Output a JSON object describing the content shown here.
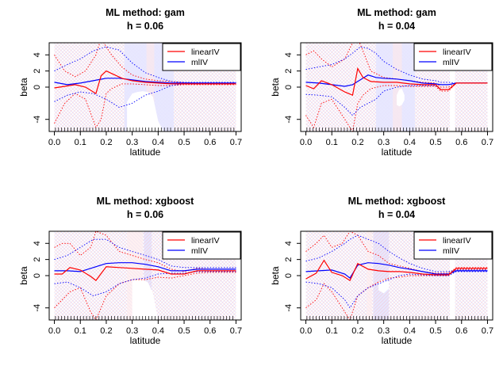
{
  "chart_data": [
    {
      "type": "line",
      "title": "ML method: gam",
      "subtitle": "h = 0.06",
      "xlabel": "latitude",
      "ylabel": "beta",
      "xlim": [
        -0.02,
        0.72
      ],
      "ylim": [
        -5.5,
        5.5
      ],
      "xticks": [
        "0.0",
        "0.1",
        "0.2",
        "0.3",
        "0.4",
        "0.5",
        "0.6",
        "0.7"
      ],
      "yticks": [
        "-4",
        "0",
        "2",
        "4"
      ],
      "legend": {
        "position": "top-right",
        "entries": [
          "linearIV",
          "mlIV"
        ]
      },
      "colors": {
        "linearIV": "#ff0000",
        "mlIV": "#0000ff",
        "band_linear": "#ffb0b0",
        "band_ml": "#b0b0ff"
      },
      "coverage": [
        [
          0.0,
          0.46
        ],
        [
          0.46,
          0.7
        ]
      ],
      "ml_gap": [
        [
          0.27,
          0.46
        ]
      ],
      "lin_gap": [
        [
          0.355,
          0.385
        ]
      ],
      "white_region": {
        "x": [
          0.28,
          0.3,
          0.32,
          0.34,
          0.36,
          0.38,
          0.4,
          0.42
        ],
        "lower": [
          -5.5,
          -5.5,
          -5.5,
          -5.5,
          -5.5,
          -5.5,
          -5.5,
          -5.5
        ],
        "upper": [
          -1.8,
          -0.8,
          -0.6,
          -0.5,
          -0.6,
          -1.2,
          -4.2,
          -5.5
        ]
      },
      "series": [
        {
          "name": "linearIV",
          "x": [
            0.0,
            0.04,
            0.08,
            0.12,
            0.16,
            0.18,
            0.2,
            0.22,
            0.26,
            0.3,
            0.35,
            0.4,
            0.45,
            0.5,
            0.55,
            0.6,
            0.7
          ],
          "y": [
            -0.1,
            0.1,
            0.3,
            0.0,
            -0.8,
            1.4,
            2.0,
            1.7,
            1.1,
            0.8,
            0.6,
            0.5,
            0.4,
            0.4,
            0.4,
            0.4,
            0.4
          ],
          "lower": [
            -4.5,
            -2.0,
            -0.8,
            -1.5,
            -5.0,
            -4.0,
            -0.8,
            -0.2,
            0.4,
            0.4,
            0.3,
            0.2,
            0.2,
            0.3,
            0.3,
            0.3,
            0.3
          ],
          "upper": [
            4.0,
            2.0,
            1.3,
            2.0,
            4.0,
            6.0,
            5.0,
            4.0,
            2.5,
            1.5,
            1.0,
            0.8,
            0.7,
            0.55,
            0.5,
            0.5,
            0.5
          ]
        },
        {
          "name": "mlIV",
          "x": [
            0.0,
            0.05,
            0.1,
            0.15,
            0.2,
            0.25,
            0.3,
            0.35,
            0.4,
            0.45,
            0.5,
            0.55,
            0.6,
            0.7
          ],
          "y": [
            0.6,
            0.3,
            0.5,
            0.8,
            1.1,
            1.1,
            0.9,
            0.7,
            0.6,
            0.5,
            0.5,
            0.5,
            0.5,
            0.5
          ],
          "lower": [
            -1.8,
            -1.0,
            -0.6,
            -0.8,
            -1.5,
            -2.5,
            -2.0,
            -1.0,
            -0.5,
            0.2,
            0.4,
            0.4,
            0.4,
            0.4
          ],
          "upper": [
            2.0,
            2.8,
            3.5,
            4.5,
            5.0,
            4.6,
            3.0,
            1.8,
            1.2,
            0.7,
            0.6,
            0.6,
            0.6,
            0.6
          ]
        }
      ]
    },
    {
      "type": "line",
      "title": "ML method: gam",
      "subtitle": "h = 0.04",
      "xlabel": "latitude",
      "ylabel": "beta",
      "xlim": [
        -0.02,
        0.72
      ],
      "ylim": [
        -5.5,
        5.5
      ],
      "xticks": [
        "0.0",
        "0.1",
        "0.2",
        "0.3",
        "0.4",
        "0.5",
        "0.6",
        "0.7"
      ],
      "yticks": [
        "-4",
        "0",
        "2",
        "4"
      ],
      "legend": {
        "position": "top-right",
        "entries": [
          "linearIV",
          "mlIV"
        ]
      },
      "colors": {
        "linearIV": "#ff0000",
        "mlIV": "#0000ff",
        "band_linear": "#ffb0b0",
        "band_ml": "#b0b0ff"
      },
      "coverage": [
        [
          0.0,
          0.555
        ],
        [
          0.575,
          0.7
        ]
      ],
      "ml_gap": [
        [
          0.27,
          0.42
        ]
      ],
      "lin_gap": [
        [
          0.335,
          0.37
        ]
      ],
      "white_region": {
        "x": [
          0.35,
          0.36,
          0.37,
          0.38
        ],
        "lower": [
          -2.2,
          -2.4,
          -2.2,
          -1.6
        ],
        "upper": [
          -1.0,
          -0.3,
          -0.2,
          -1.0
        ]
      },
      "series": [
        {
          "name": "linearIV",
          "x": [
            0.0,
            0.03,
            0.06,
            0.1,
            0.15,
            0.18,
            0.2,
            0.22,
            0.25,
            0.3,
            0.35,
            0.4,
            0.45,
            0.5,
            0.52,
            0.55,
            0.58,
            0.62,
            0.66,
            0.7
          ],
          "y": [
            0.2,
            -0.2,
            0.8,
            0.3,
            -0.6,
            -1.0,
            2.3,
            1.2,
            0.7,
            0.6,
            0.6,
            0.4,
            0.3,
            0.3,
            -0.3,
            -0.3,
            0.5,
            0.5,
            0.5,
            0.5
          ],
          "lower": [
            -3.5,
            -5.0,
            -2.0,
            -1.5,
            -4.0,
            -5.5,
            -2.0,
            -1.0,
            -0.2,
            0.2,
            0.2,
            0.1,
            0.1,
            0.1,
            -0.5,
            -0.5,
            0.5,
            0.5,
            0.5,
            0.5
          ],
          "upper": [
            4.0,
            4.5,
            3.5,
            2.5,
            3.5,
            5.5,
            6.0,
            4.5,
            2.0,
            1.2,
            1.0,
            0.8,
            0.6,
            0.5,
            0.0,
            0.0,
            0.5,
            0.5,
            0.5,
            0.5
          ]
        },
        {
          "name": "mlIV",
          "x": [
            0.0,
            0.05,
            0.1,
            0.15,
            0.18,
            0.21,
            0.24,
            0.27,
            0.3,
            0.35,
            0.4,
            0.45,
            0.5,
            0.52,
            0.55,
            0.58,
            0.62,
            0.66,
            0.7
          ],
          "y": [
            0.6,
            0.5,
            0.3,
            0.1,
            0.3,
            0.9,
            1.5,
            1.2,
            1.1,
            1.0,
            0.8,
            0.5,
            0.4,
            0.3,
            0.3,
            0.5,
            0.5,
            0.5,
            0.5
          ],
          "lower": [
            -0.9,
            -1.0,
            -1.2,
            -2.5,
            -3.5,
            -2.5,
            -2.0,
            -1.5,
            -0.5,
            0.0,
            0.2,
            0.2,
            0.2,
            -0.3,
            -0.3,
            0.5,
            0.5,
            0.5,
            0.5
          ],
          "upper": [
            2.2,
            2.5,
            2.8,
            3.5,
            4.2,
            5.0,
            4.8,
            4.2,
            3.2,
            2.2,
            1.5,
            1.0,
            0.8,
            0.6,
            0.6,
            0.5,
            0.5,
            0.5,
            0.5
          ]
        }
      ]
    },
    {
      "type": "line",
      "title": "ML method: xgboost",
      "subtitle": "h = 0.06",
      "xlabel": "latitude",
      "ylabel": "beta",
      "xlim": [
        -0.02,
        0.72
      ],
      "ylim": [
        -5.5,
        5.5
      ],
      "xticks": [
        "0.0",
        "0.1",
        "0.2",
        "0.3",
        "0.4",
        "0.5",
        "0.6",
        "0.7"
      ],
      "yticks": [
        "-4",
        "0",
        "2",
        "4"
      ],
      "legend": {
        "position": "top-right",
        "entries": [
          "linearIV",
          "mlIV"
        ]
      },
      "colors": {
        "linearIV": "#ff0000",
        "mlIV": "#0000ff",
        "band_linear": "#ffb0b0",
        "band_ml": "#b0b0ff"
      },
      "coverage": [
        [
          0.0,
          0.7
        ]
      ],
      "ml_gap": [
        [
          0.345,
          0.375
        ]
      ],
      "lin_gap": [
        [
          0.28,
          0.34
        ]
      ],
      "white_region": {
        "x": [
          0.3,
          0.32,
          0.34,
          0.36,
          0.38,
          0.4
        ],
        "lower": [
          -5.5,
          -5.5,
          -5.5,
          -5.5,
          -5.5,
          -5.5
        ],
        "upper": [
          -0.6,
          -0.5,
          -0.5,
          -0.8,
          -2.2,
          -5.5
        ]
      },
      "series": [
        {
          "name": "linearIV",
          "x": [
            0.0,
            0.03,
            0.06,
            0.1,
            0.14,
            0.16,
            0.2,
            0.25,
            0.3,
            0.35,
            0.4,
            0.45,
            0.5,
            0.55,
            0.6,
            0.7
          ],
          "y": [
            0.2,
            0.2,
            1.0,
            0.7,
            -0.1,
            -0.6,
            1.1,
            1.0,
            0.9,
            0.8,
            0.7,
            0.2,
            0.2,
            0.6,
            0.6,
            0.6
          ],
          "lower": [
            -4.0,
            -3.0,
            -2.0,
            -1.5,
            -4.5,
            -5.5,
            -2.5,
            -1.0,
            -0.5,
            -0.5,
            -0.2,
            -0.3,
            0.0,
            0.3,
            0.4,
            0.4
          ],
          "upper": [
            3.5,
            4.0,
            4.0,
            2.5,
            3.5,
            5.5,
            5.0,
            3.0,
            2.5,
            2.0,
            1.6,
            0.8,
            0.5,
            0.9,
            0.8,
            0.8
          ]
        },
        {
          "name": "mlIV",
          "x": [
            0.0,
            0.05,
            0.1,
            0.15,
            0.2,
            0.25,
            0.3,
            0.35,
            0.4,
            0.45,
            0.5,
            0.55,
            0.6,
            0.7
          ],
          "y": [
            0.6,
            0.6,
            0.5,
            1.0,
            1.5,
            1.6,
            1.6,
            1.4,
            1.1,
            0.6,
            0.6,
            0.8,
            0.8,
            0.8
          ],
          "lower": [
            -1.0,
            -0.8,
            -1.5,
            -2.5,
            -2.0,
            -1.0,
            -0.5,
            -0.3,
            0.2,
            0.3,
            0.3,
            0.5,
            0.5,
            0.5
          ],
          "upper": [
            2.0,
            2.5,
            3.5,
            4.5,
            4.5,
            3.5,
            3.0,
            2.5,
            2.0,
            1.2,
            1.0,
            1.0,
            1.0,
            1.0
          ]
        }
      ]
    },
    {
      "type": "line",
      "title": "ML method: xgboost",
      "subtitle": "h = 0.04",
      "xlabel": "latitude",
      "ylabel": "beta",
      "xlim": [
        -0.02,
        0.72
      ],
      "ylim": [
        -5.5,
        5.5
      ],
      "xticks": [
        "0.0",
        "0.1",
        "0.2",
        "0.3",
        "0.4",
        "0.5",
        "0.6",
        "0.7"
      ],
      "yticks": [
        "-4",
        "0",
        "2",
        "4"
      ],
      "legend": {
        "position": "top-right",
        "entries": [
          "linearIV",
          "mlIV"
        ]
      },
      "colors": {
        "linearIV": "#ff0000",
        "mlIV": "#0000ff",
        "band_linear": "#ffb0b0",
        "band_ml": "#b0b0ff"
      },
      "coverage": [
        [
          0.0,
          0.555
        ],
        [
          0.575,
          0.7
        ]
      ],
      "ml_gap": [
        [
          0.26,
          0.32
        ]
      ],
      "lin_gap": [
        [
          0.235,
          0.255
        ]
      ],
      "white_region": {
        "x": [
          0.28,
          0.3,
          0.32
        ],
        "lower": [
          -1.8,
          -2.2,
          -1.6
        ],
        "upper": [
          -0.8,
          -0.4,
          -0.8
        ]
      },
      "series": [
        {
          "name": "linearIV",
          "x": [
            0.0,
            0.04,
            0.07,
            0.1,
            0.14,
            0.17,
            0.2,
            0.24,
            0.28,
            0.32,
            0.36,
            0.4,
            0.45,
            0.5,
            0.55,
            0.58,
            0.62,
            0.66,
            0.7
          ],
          "y": [
            -0.4,
            0.3,
            1.9,
            0.4,
            0.0,
            -0.6,
            1.5,
            0.8,
            0.6,
            0.5,
            0.5,
            0.4,
            0.2,
            0.1,
            0.1,
            0.9,
            0.9,
            0.9,
            0.9
          ],
          "lower": [
            -4.0,
            -3.0,
            -1.0,
            -2.0,
            -4.0,
            -5.5,
            -2.5,
            -1.5,
            -0.8,
            -0.3,
            -0.2,
            0.0,
            0.0,
            0.0,
            0.0,
            0.8,
            0.8,
            0.8,
            0.8
          ],
          "upper": [
            3.0,
            4.0,
            5.0,
            3.5,
            4.0,
            5.5,
            5.0,
            3.0,
            2.5,
            1.5,
            1.2,
            0.9,
            0.5,
            0.3,
            0.3,
            1.0,
            1.0,
            1.0,
            1.0
          ]
        },
        {
          "name": "mlIV",
          "x": [
            0.0,
            0.05,
            0.1,
            0.15,
            0.17,
            0.2,
            0.24,
            0.28,
            0.32,
            0.36,
            0.4,
            0.45,
            0.5,
            0.55,
            0.58,
            0.62,
            0.66,
            0.7
          ],
          "y": [
            0.5,
            0.6,
            0.7,
            0.2,
            -0.3,
            1.3,
            1.6,
            1.5,
            1.3,
            1.0,
            0.8,
            0.5,
            0.2,
            0.2,
            0.6,
            0.6,
            0.6,
            0.6
          ],
          "lower": [
            -0.8,
            -1.0,
            -1.5,
            -3.0,
            -4.0,
            -2.5,
            -1.5,
            -1.0,
            -0.5,
            0.0,
            0.2,
            0.1,
            0.0,
            0.0,
            0.5,
            0.5,
            0.5,
            0.5
          ],
          "upper": [
            1.8,
            2.2,
            3.0,
            4.0,
            4.5,
            5.0,
            4.5,
            4.0,
            3.0,
            2.2,
            1.5,
            0.9,
            0.5,
            0.5,
            0.7,
            0.7,
            0.7,
            0.7
          ]
        }
      ]
    }
  ]
}
